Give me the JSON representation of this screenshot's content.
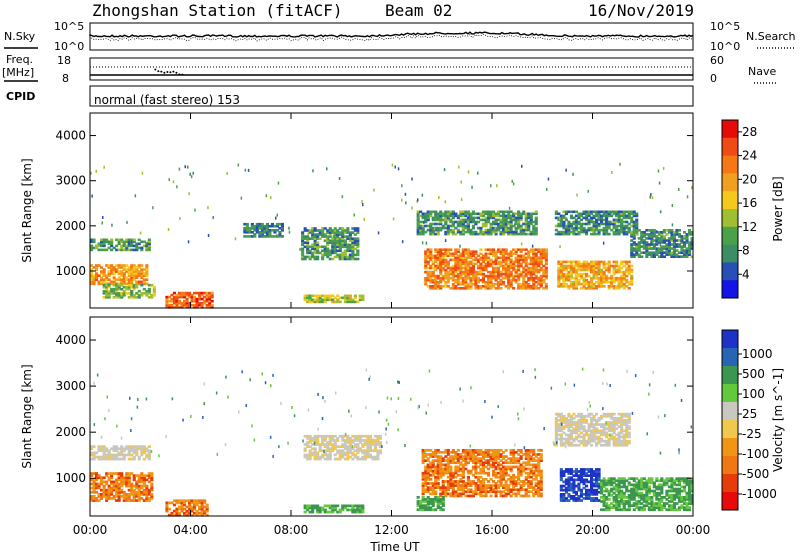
{
  "header": {
    "title": "Zhongshan Station (fitACF)",
    "beam": "Beam 02",
    "date": "16/Nov/2019"
  },
  "noise_panel": {
    "left_label": "N.Sky",
    "right_label": "N.Search",
    "ytick_top": "10^5",
    "ytick_bottom": "10^0",
    "right_ytick_top": "10^5",
    "right_ytick_bottom": "10^0"
  },
  "freq_panel": {
    "left_label_line1": "Freq.",
    "left_label_line2": "[MHz]",
    "left_tick_top": "18",
    "left_tick_bottom": "8",
    "right_label": "Nave",
    "right_tick_top": "60",
    "right_tick_bottom": "0"
  },
  "cpid_panel": {
    "label": "CPID",
    "text": "normal (fast stereo) 153"
  },
  "chart_data": [
    {
      "type": "heatmap",
      "title": "",
      "xlabel": "",
      "ylabel": "Slant Range [km]",
      "x_ticks": [
        "00:00",
        "04:00",
        "08:00",
        "12:00",
        "16:00",
        "20:00",
        "00:00"
      ],
      "xlim_hours": [
        0,
        24
      ],
      "y_ticks": [
        "1000",
        "2000",
        "3000",
        "4000"
      ],
      "ylim": [
        180,
        4500
      ],
      "colorbar": {
        "label": "Power [dB]",
        "ticks": [
          "4",
          "8",
          "12",
          "16",
          "20",
          "24",
          "28"
        ],
        "range": [
          0,
          30
        ],
        "colors": [
          "#1414e6",
          "#2850b4",
          "#3c8c64",
          "#4ca04c",
          "#a0be32",
          "#f5c81e",
          "#f0a01e",
          "#f57814",
          "#f04b14",
          "#e60a0a"
        ]
      },
      "regions": [
        {
          "t0": 0.0,
          "t1": 2.4,
          "r0": 1450,
          "r1": 1700,
          "v": 9
        },
        {
          "t0": 0.0,
          "t1": 2.3,
          "r0": 700,
          "r1": 1150,
          "v": 20
        },
        {
          "t0": 0.5,
          "t1": 2.6,
          "r0": 400,
          "r1": 700,
          "v": 12
        },
        {
          "t0": 3.0,
          "t1": 4.8,
          "r0": 180,
          "r1": 500,
          "v": 24
        },
        {
          "t0": 6.1,
          "t1": 7.6,
          "r0": 1750,
          "r1": 2050,
          "v": 7
        },
        {
          "t0": 8.4,
          "t1": 10.6,
          "r0": 1250,
          "r1": 1950,
          "v": 9
        },
        {
          "t0": 8.5,
          "t1": 10.8,
          "r0": 300,
          "r1": 450,
          "v": 14
        },
        {
          "t0": 13.0,
          "t1": 17.8,
          "r0": 1800,
          "r1": 2300,
          "v": 9
        },
        {
          "t0": 13.3,
          "t1": 18.2,
          "r0": 600,
          "r1": 1500,
          "v": 22
        },
        {
          "t0": 18.5,
          "t1": 21.8,
          "r0": 1800,
          "r1": 2300,
          "v": 8
        },
        {
          "t0": 18.6,
          "t1": 21.6,
          "r0": 600,
          "r1": 1200,
          "v": 19
        },
        {
          "t0": 21.5,
          "t1": 24.0,
          "r0": 1300,
          "r1": 1900,
          "v": 8
        }
      ]
    },
    {
      "type": "heatmap",
      "title": "",
      "xlabel": "Time UT",
      "ylabel": "Slant Range [km]",
      "x_ticks": [
        "00:00",
        "04:00",
        "08:00",
        "12:00",
        "16:00",
        "20:00",
        "00:00"
      ],
      "xlim_hours": [
        0,
        24
      ],
      "y_ticks": [
        "1000",
        "2000",
        "3000",
        "4000"
      ],
      "ylim": [
        180,
        4500
      ],
      "colorbar": {
        "label": "Velocity [m s^-1]",
        "ticks": [
          "1000",
          "500",
          "100",
          "25",
          "-25",
          "-100",
          "-500",
          "-1000"
        ],
        "colors": [
          "#1e32c8",
          "#2864b4",
          "#3c9650",
          "#64c83c",
          "#c8c8c0",
          "#f0c850",
          "#f09614",
          "#f07814",
          "#e63c0a",
          "#e60a0a"
        ]
      },
      "regions": [
        {
          "t0": 0.0,
          "t1": 2.4,
          "r0": 1400,
          "r1": 1700,
          "v": "grey"
        },
        {
          "t0": 0.0,
          "t1": 2.5,
          "r0": 500,
          "r1": 1100,
          "v": "orange"
        },
        {
          "t0": 3.0,
          "t1": 4.6,
          "r0": 180,
          "r1": 500,
          "v": "orange"
        },
        {
          "t0": 8.5,
          "t1": 11.5,
          "r0": 1400,
          "r1": 1900,
          "v": "grey"
        },
        {
          "t0": 8.5,
          "t1": 10.8,
          "r0": 250,
          "r1": 400,
          "v": "green"
        },
        {
          "t0": 13.2,
          "t1": 18.0,
          "r0": 600,
          "r1": 1600,
          "v": "orange"
        },
        {
          "t0": 13.0,
          "t1": 14.0,
          "r0": 300,
          "r1": 600,
          "v": "green"
        },
        {
          "t0": 18.5,
          "t1": 21.5,
          "r0": 1700,
          "r1": 2400,
          "v": "grey"
        },
        {
          "t0": 18.7,
          "t1": 20.3,
          "r0": 500,
          "r1": 1200,
          "v": "blue"
        },
        {
          "t0": 20.3,
          "t1": 24.0,
          "r0": 300,
          "r1": 1000,
          "v": "green"
        }
      ]
    }
  ]
}
